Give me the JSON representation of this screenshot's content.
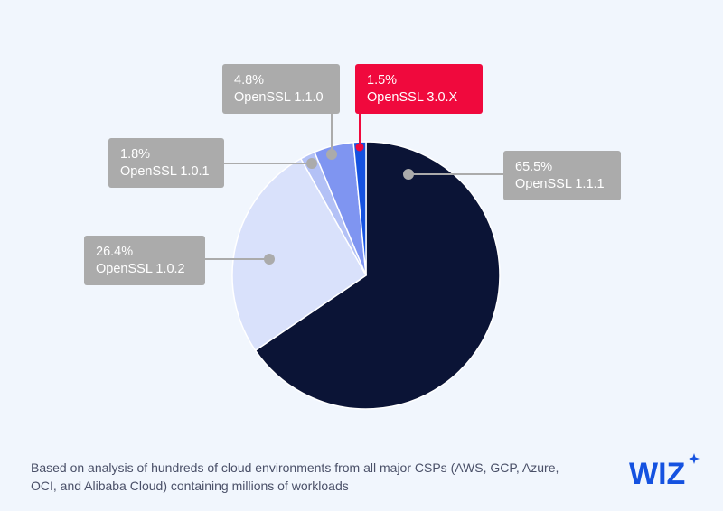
{
  "chart_data": {
    "type": "pie",
    "start": "top, clockwise",
    "slices": [
      {
        "label": "OpenSSL 1.1.1",
        "value": 65.5,
        "value_label": "65.5%",
        "color": "#0b1436"
      },
      {
        "label": "OpenSSL 1.0.2",
        "value": 26.4,
        "value_label": "26.4%",
        "color": "#d9e1fb"
      },
      {
        "label": "OpenSSL 1.0.1",
        "value": 1.8,
        "value_label": "1.8%",
        "color": "#b3c1f6"
      },
      {
        "label": "OpenSSL 1.1.0",
        "value": 4.8,
        "value_label": "4.8%",
        "color": "#7f95f1"
      },
      {
        "label": "OpenSSL 3.0.X",
        "value": 1.5,
        "value_label": "1.5%",
        "color": "#1552e0",
        "highlighted": true,
        "highlight_color": "#f0093d"
      }
    ]
  },
  "footnote": "Based on analysis of hundreds of cloud environments from all major CSPs (AWS, GCP, Azure, OCI, and Alibaba Cloud) containing millions of workloads",
  "logo": {
    "text": "WIZ",
    "color": "#1552e0"
  }
}
